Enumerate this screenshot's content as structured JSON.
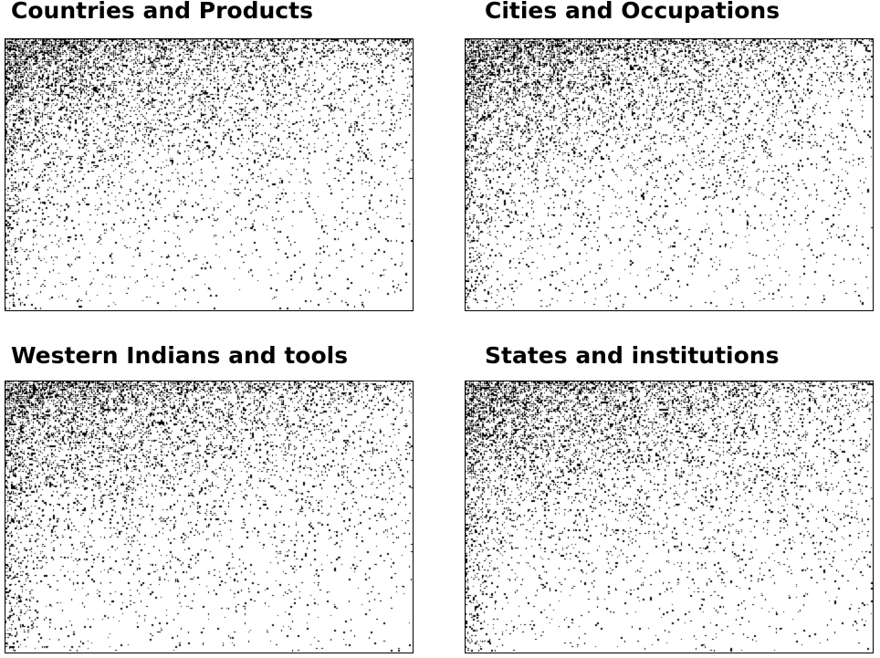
{
  "chart_data": [
    {
      "type": "heatmap",
      "title": "Countries and Products",
      "encoding": "binary-matrix",
      "colors": {
        "cell": "#000000",
        "background": "#ffffff"
      }
    },
    {
      "type": "heatmap",
      "title": "Cities and Occupations",
      "encoding": "binary-matrix",
      "colors": {
        "cell": "#000000",
        "background": "#ffffff"
      }
    },
    {
      "type": "heatmap",
      "title": "Western Indians and tools",
      "encoding": "binary-matrix",
      "colors": {
        "cell": "#000000",
        "background": "#ffffff"
      }
    },
    {
      "type": "heatmap",
      "title": "States and institutions",
      "encoding": "binary-matrix",
      "colors": {
        "cell": "#000000",
        "background": "#ffffff"
      }
    }
  ]
}
